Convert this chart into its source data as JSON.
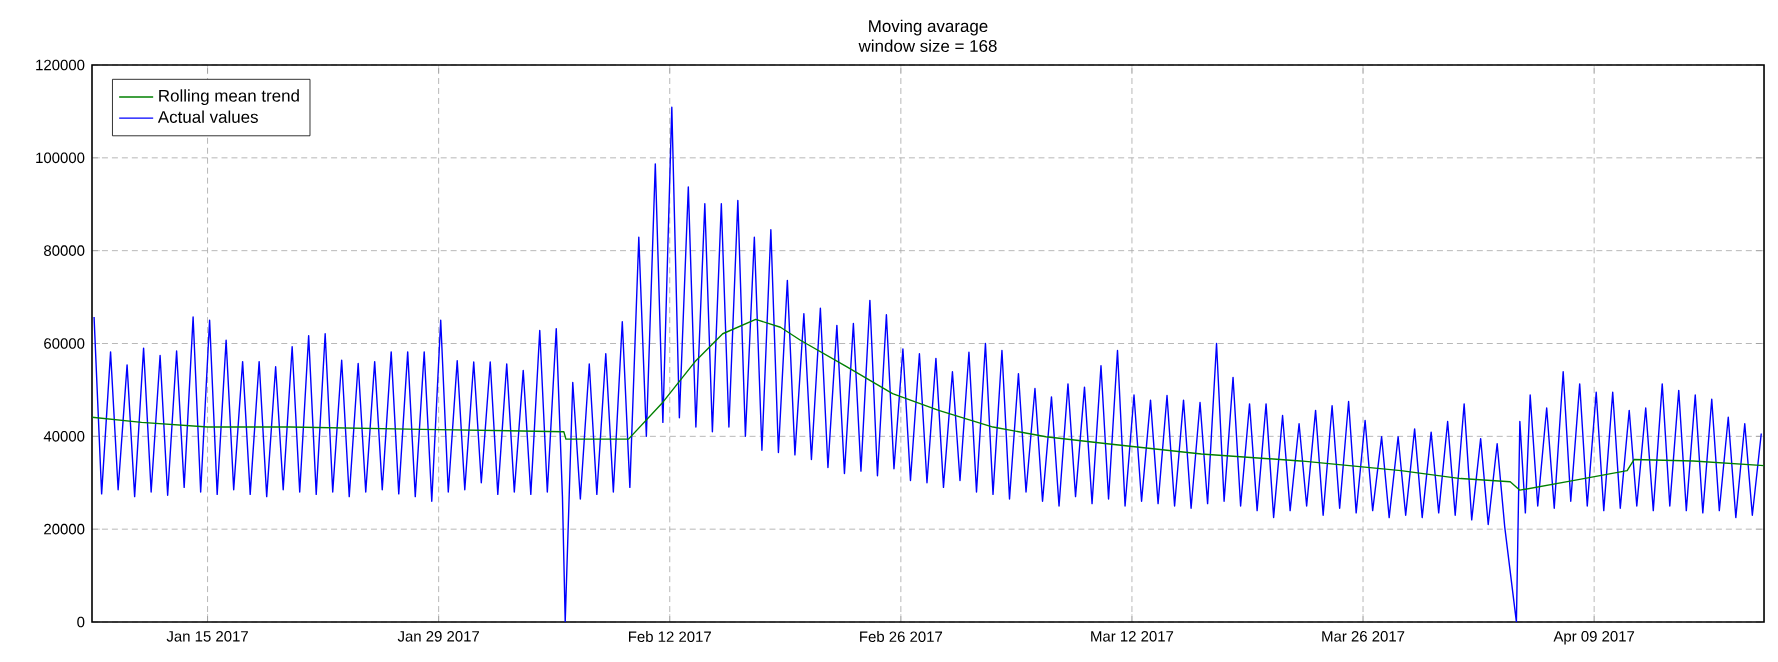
{
  "chart_data": {
    "type": "line",
    "title": "Moving avarage",
    "subtitle": "window size = 168",
    "xlim": [
      "2017-01-08T00:00",
      "2017-04-19T07:00"
    ],
    "ylim": [
      0,
      120000
    ],
    "xticks": [
      {
        "value": "2017-01-15",
        "label": "Jan 15 2017"
      },
      {
        "value": "2017-01-29",
        "label": "Jan 29 2017"
      },
      {
        "value": "2017-02-12",
        "label": "Feb 12 2017"
      },
      {
        "value": "2017-02-26",
        "label": "Feb 26 2017"
      },
      {
        "value": "2017-03-12",
        "label": "Mar 12 2017"
      },
      {
        "value": "2017-03-26",
        "label": "Mar 26 2017"
      },
      {
        "value": "2017-04-09",
        "label": "Apr 09 2017"
      }
    ],
    "yticks": [
      0,
      20000,
      40000,
      60000,
      80000,
      100000,
      120000
    ],
    "grid": true,
    "legend": "top left",
    "series": [
      {
        "name": "Rolling mean trend",
        "color": "#008000",
        "x": [
          "2017-01-08T00:00",
          "2017-01-11T00:00",
          "2017-01-15T00:00",
          "2017-01-20T00:00",
          "2017-01-28T00:00",
          "2017-02-05T14:00",
          "2017-02-05T17:00",
          "2017-02-09T12:00",
          "2017-02-11T12:00",
          "2017-02-13T14:00",
          "2017-02-15T05:00",
          "2017-02-17T05:00",
          "2017-02-18T17:00",
          "2017-02-19T22:00",
          "2017-02-22T17:00",
          "2017-02-25T12:00",
          "2017-02-28T07:00",
          "2017-03-03T14:00",
          "2017-03-06T19:00",
          "2017-03-10T12:00",
          "2017-03-16T05:00",
          "2017-03-22T05:00",
          "2017-03-28T07:00",
          "2017-03-31T22:00",
          "2017-04-03T22:00",
          "2017-04-04T12:00",
          "2017-04-07T19:00",
          "2017-04-11T00:00",
          "2017-04-11T10:00",
          "2017-04-15T00:00",
          "2017-04-19T07:00"
        ],
        "values": [
          44100,
          43000,
          42000,
          42000,
          41500,
          41000,
          39400,
          39400,
          47000,
          56300,
          62100,
          65200,
          63500,
          60700,
          55000,
          49200,
          45600,
          42000,
          39900,
          38400,
          36200,
          34700,
          32600,
          30900,
          30200,
          28400,
          30500,
          32600,
          35000,
          34700,
          33700
        ]
      },
      {
        "name": "Actual values",
        "color": "#0000ff",
        "x": [
          "2017-01-08T03:00",
          "2017-01-08T14:00",
          "2017-01-09T03:00",
          "2017-01-09T14:00",
          "2017-01-10T03:00",
          "2017-01-10T14:00",
          "2017-01-11T03:00",
          "2017-01-11T14:00",
          "2017-01-12T03:00",
          "2017-01-12T14:00",
          "2017-01-13T03:00",
          "2017-01-13T14:00",
          "2017-01-14T03:00",
          "2017-01-14T14:00",
          "2017-01-15T03:00",
          "2017-01-15T14:00",
          "2017-01-16T03:00",
          "2017-01-16T14:00",
          "2017-01-17T03:00",
          "2017-01-17T14:00",
          "2017-01-18T03:00",
          "2017-01-18T14:00",
          "2017-01-19T03:00",
          "2017-01-19T14:00",
          "2017-01-20T03:00",
          "2017-01-20T14:00",
          "2017-01-21T03:00",
          "2017-01-21T14:00",
          "2017-01-22T03:00",
          "2017-01-22T14:00",
          "2017-01-23T03:00",
          "2017-01-23T14:00",
          "2017-01-24T03:00",
          "2017-01-24T14:00",
          "2017-01-25T03:00",
          "2017-01-25T14:00",
          "2017-01-26T03:00",
          "2017-01-26T14:00",
          "2017-01-27T03:00",
          "2017-01-27T14:00",
          "2017-01-28T03:00",
          "2017-01-28T14:00",
          "2017-01-29T03:00",
          "2017-01-29T14:00",
          "2017-01-30T03:00",
          "2017-01-30T14:00",
          "2017-01-31T03:00",
          "2017-01-31T14:00",
          "2017-02-01T03:00",
          "2017-02-01T14:00",
          "2017-02-02T03:00",
          "2017-02-02T14:00",
          "2017-02-03T03:00",
          "2017-02-03T14:00",
          "2017-02-04T03:00",
          "2017-02-04T14:00",
          "2017-02-05T03:00",
          "2017-02-05T12:00",
          "2017-02-05T16:00",
          "2017-02-06T03:00",
          "2017-02-06T14:00",
          "2017-02-07T03:00",
          "2017-02-07T14:00",
          "2017-02-08T03:00",
          "2017-02-08T14:00",
          "2017-02-09T03:00",
          "2017-02-09T14:00",
          "2017-02-10T03:00",
          "2017-02-10T14:00",
          "2017-02-11T03:00",
          "2017-02-11T14:00",
          "2017-02-12T03:00",
          "2017-02-12T14:00",
          "2017-02-13T03:00",
          "2017-02-13T14:00",
          "2017-02-14T03:00",
          "2017-02-14T14:00",
          "2017-02-15T03:00",
          "2017-02-15T14:00",
          "2017-02-16T03:00",
          "2017-02-16T14:00",
          "2017-02-17T03:00",
          "2017-02-17T14:00",
          "2017-02-18T03:00",
          "2017-02-18T14:00",
          "2017-02-19T03:00",
          "2017-02-19T14:00",
          "2017-02-20T03:00",
          "2017-02-20T14:00",
          "2017-02-21T03:00",
          "2017-02-21T14:00",
          "2017-02-22T03:00",
          "2017-02-22T14:00",
          "2017-02-23T03:00",
          "2017-02-23T14:00",
          "2017-02-24T03:00",
          "2017-02-24T14:00",
          "2017-02-25T03:00",
          "2017-02-25T14:00",
          "2017-02-26T03:00",
          "2017-02-26T14:00",
          "2017-02-27T03:00",
          "2017-02-27T14:00",
          "2017-02-28T03:00",
          "2017-02-28T14:00",
          "2017-03-01T03:00",
          "2017-03-01T14:00",
          "2017-03-02T03:00",
          "2017-03-02T14:00",
          "2017-03-03T03:00",
          "2017-03-03T14:00",
          "2017-03-04T03:00",
          "2017-03-04T14:00",
          "2017-03-05T03:00",
          "2017-03-05T14:00",
          "2017-03-06T03:00",
          "2017-03-06T14:00",
          "2017-03-07T03:00",
          "2017-03-07T14:00",
          "2017-03-08T03:00",
          "2017-03-08T14:00",
          "2017-03-09T03:00",
          "2017-03-09T14:00",
          "2017-03-10T03:00",
          "2017-03-10T14:00",
          "2017-03-11T03:00",
          "2017-03-11T14:00",
          "2017-03-12T03:00",
          "2017-03-12T14:00",
          "2017-03-13T03:00",
          "2017-03-13T14:00",
          "2017-03-14T03:00",
          "2017-03-14T14:00",
          "2017-03-15T03:00",
          "2017-03-15T14:00",
          "2017-03-16T03:00",
          "2017-03-16T14:00",
          "2017-03-17T03:00",
          "2017-03-17T14:00",
          "2017-03-18T03:00",
          "2017-03-18T14:00",
          "2017-03-19T03:00",
          "2017-03-19T14:00",
          "2017-03-20T03:00",
          "2017-03-20T14:00",
          "2017-03-21T03:00",
          "2017-03-21T14:00",
          "2017-03-22T03:00",
          "2017-03-22T14:00",
          "2017-03-23T03:00",
          "2017-03-23T14:00",
          "2017-03-24T03:00",
          "2017-03-24T14:00",
          "2017-03-25T03:00",
          "2017-03-25T14:00",
          "2017-03-26T03:00",
          "2017-03-26T14:00",
          "2017-03-27T03:00",
          "2017-03-27T14:00",
          "2017-03-28T03:00",
          "2017-03-28T14:00",
          "2017-03-29T03:00",
          "2017-03-29T14:00",
          "2017-03-30T03:00",
          "2017-03-30T14:00",
          "2017-03-31T03:00",
          "2017-03-31T14:00",
          "2017-04-01T03:00",
          "2017-04-01T14:00",
          "2017-04-02T03:00",
          "2017-04-02T14:00",
          "2017-04-03T03:00",
          "2017-04-03T14:00",
          "2017-04-04T07:00",
          "2017-04-04T12:00",
          "2017-04-04T20:00",
          "2017-04-05T03:00",
          "2017-04-05T14:00",
          "2017-04-06T03:00",
          "2017-04-06T14:00",
          "2017-04-07T03:00",
          "2017-04-07T14:00",
          "2017-04-08T03:00",
          "2017-04-08T14:00",
          "2017-04-09T03:00",
          "2017-04-09T14:00",
          "2017-04-10T03:00",
          "2017-04-10T14:00",
          "2017-04-11T03:00",
          "2017-04-11T14:00",
          "2017-04-12T03:00",
          "2017-04-12T14:00",
          "2017-04-13T03:00",
          "2017-04-13T14:00",
          "2017-04-14T03:00",
          "2017-04-14T14:00",
          "2017-04-15T03:00",
          "2017-04-15T14:00",
          "2017-04-16T03:00",
          "2017-04-16T14:00",
          "2017-04-17T03:00",
          "2017-04-17T14:00",
          "2017-04-18T03:00",
          "2017-04-18T14:00",
          "2017-04-19T03:00"
        ],
        "values": [
          65700,
          27600,
          58200,
          28500,
          55400,
          27000,
          59000,
          28000,
          57400,
          27300,
          58400,
          29000,
          65700,
          28000,
          65000,
          27500,
          60700,
          28500,
          56100,
          27500,
          56100,
          27000,
          55000,
          28500,
          59300,
          28000,
          61700,
          27500,
          62100,
          28000,
          56400,
          27000,
          55700,
          28000,
          56100,
          28500,
          58200,
          27600,
          58200,
          27000,
          58200,
          26000,
          65000,
          28000,
          56300,
          28500,
          56000,
          30000,
          56000,
          27500,
          55600,
          28000,
          54200,
          27500,
          62800,
          28000,
          63200,
          27000,
          0,
          51600,
          26500,
          55600,
          27500,
          57800,
          28000,
          64700,
          29000,
          82900,
          40000,
          98700,
          43000,
          110900,
          44000,
          93700,
          42000,
          90100,
          41000,
          90100,
          42000,
          90800,
          40000,
          82900,
          37000,
          84500,
          36500,
          73600,
          36000,
          66400,
          35000,
          67600,
          33300,
          63900,
          32000,
          64300,
          32500,
          69300,
          31500,
          66200,
          33000,
          58800,
          30500,
          57800,
          30000,
          56800,
          29000,
          53900,
          30500,
          58100,
          28000,
          60000,
          27500,
          58500,
          26500,
          53500,
          28000,
          50300,
          26000,
          48500,
          25000,
          51300,
          27000,
          50600,
          25500,
          55200,
          26500,
          58500,
          25000,
          48900,
          26000,
          47800,
          25500,
          48800,
          25000,
          47800,
          24500,
          47300,
          25500,
          60000,
          26000,
          52700,
          25000,
          47000,
          24000,
          47000,
          22500,
          44500,
          24000,
          42700,
          25000,
          45600,
          23000,
          46600,
          24500,
          47500,
          23500,
          43400,
          24000,
          39900,
          22500,
          39900,
          23000,
          41600,
          22500,
          40900,
          23500,
          43200,
          23000,
          47000,
          22000,
          39500,
          21000,
          38400,
          20500,
          0,
          43200,
          23500,
          48900,
          25000,
          46100,
          24500,
          53900,
          26000,
          51300,
          25000,
          49500,
          24000,
          49500,
          24500,
          45600,
          25000,
          46100,
          24000,
          51300,
          25000,
          49900,
          24000,
          48900,
          23500,
          48000,
          24000,
          44100,
          22500,
          42700,
          23000,
          40600
        ]
      }
    ]
  }
}
